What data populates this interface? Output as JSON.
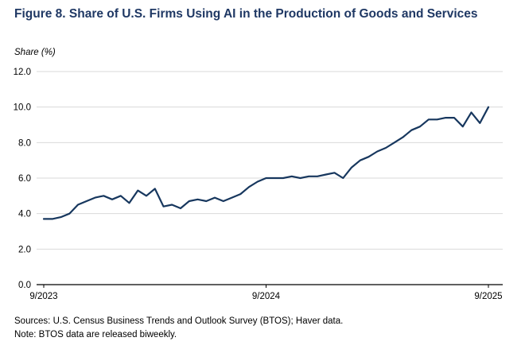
{
  "figure": {
    "source_line": "Sources: U.S. Census Business Trends and Outlook Survey (BTOS); Haver data.",
    "note_line": "Note: BTOS data are released biweekly."
  },
  "chart_data": {
    "type": "line",
    "title": "Figure 8. Share of U.S. Firms Using AI in the Production of Goods and Services",
    "ylabel": "Share (%)",
    "xlabel": "",
    "ylim": [
      0.0,
      12.0
    ],
    "yticks": [
      0.0,
      2.0,
      4.0,
      6.0,
      8.0,
      10.0,
      12.0
    ],
    "xticks": [
      {
        "label": "9/2023",
        "index": 0
      },
      {
        "label": "9/2024",
        "index": 26
      },
      {
        "label": "9/2025",
        "index": 52
      }
    ],
    "grid": true,
    "legend_position": "none",
    "title_color": "#1F3864",
    "line_color": "#17375E",
    "gridline_color": "#D9D9D9",
    "axis_color": "#000000",
    "frequency": "biweekly",
    "values": [
      3.7,
      3.7,
      3.8,
      4.0,
      4.5,
      4.7,
      4.9,
      5.0,
      4.8,
      5.0,
      4.6,
      5.3,
      5.0,
      5.4,
      4.4,
      4.5,
      4.3,
      4.7,
      4.8,
      4.7,
      4.9,
      4.7,
      4.9,
      5.1,
      5.5,
      5.8,
      6.0,
      6.0,
      6.0,
      6.1,
      6.0,
      6.1,
      6.1,
      6.2,
      6.3,
      6.0,
      6.6,
      7.0,
      7.2,
      7.5,
      7.7,
      8.0,
      8.3,
      8.7,
      8.9,
      9.3,
      9.3,
      9.4,
      9.4,
      8.9,
      9.7,
      9.1,
      10.0
    ]
  }
}
